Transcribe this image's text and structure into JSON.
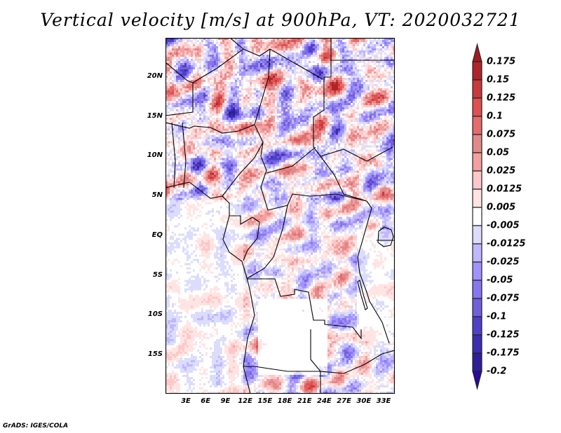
{
  "title": "Vertical velocity [m/s] at 900hPa, VT: 2020032721",
  "lat_labels": [
    "20N",
    "15N",
    "10N",
    "5N",
    "EQ",
    "5S",
    "10S",
    "15S"
  ],
  "lon_labels": [
    "3E",
    "6E",
    "9E",
    "12E",
    "15E",
    "18E",
    "21E",
    "24E",
    "27E",
    "30E",
    "33E"
  ],
  "colorbar": {
    "labels": [
      "0.175",
      "0.15",
      "0.125",
      "0.1",
      "0.075",
      "0.05",
      "0.025",
      "0.0125",
      "0.005",
      "-0.005",
      "-0.0125",
      "-0.025",
      "-0.05",
      "-0.075",
      "-0.1",
      "-0.125",
      "-0.175",
      "-0.2"
    ],
    "top_arrow_color": "#a01c20",
    "bottom_arrow_color": "#2a0a9c",
    "colors": [
      "#b02428",
      "#c83a3c",
      "#e05050",
      "#e46c6c",
      "#e08a8a",
      "#f4a0a0",
      "#fec8c8",
      "#ffe4e4",
      "#ffffff",
      "#dcdcfc",
      "#c0b8fe",
      "#a292fc",
      "#8876ee",
      "#7060dc",
      "#5040c8",
      "#3c2cb0",
      "#2e1e98"
    ]
  },
  "footer": "GrADS: IGES/COLA"
}
